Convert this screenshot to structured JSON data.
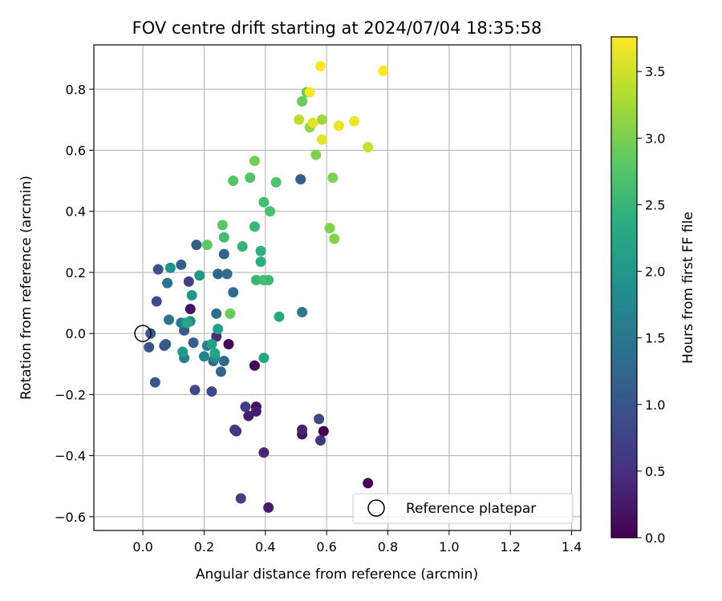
{
  "chart_data": {
    "type": "scatter",
    "title": "FOV centre drift starting at 2024/07/04 18:35:58",
    "xlabel": "Angular distance from reference (arcmin)",
    "ylabel": "Rotation from reference (arcmin)",
    "xlim": [
      -0.16,
      1.43
    ],
    "ylim": [
      -0.645,
      0.945
    ],
    "xticks": [
      0.0,
      0.2,
      0.4,
      0.6,
      0.8,
      1.0,
      1.2,
      1.4
    ],
    "xtick_labels": [
      "0.0",
      "0.2",
      "0.4",
      "0.6",
      "0.8",
      "1.0",
      "1.2",
      "1.4"
    ],
    "yticks": [
      -0.6,
      -0.4,
      -0.2,
      0.0,
      0.2,
      0.4,
      0.6,
      0.8
    ],
    "ytick_labels": [
      "−0.6",
      "−0.4",
      "−0.2",
      "0.0",
      "0.2",
      "0.4",
      "0.6",
      "0.8"
    ],
    "grid": true,
    "colormap": "viridis",
    "colorbar": {
      "label": "Hours from first FF file",
      "range": [
        0.0,
        3.76
      ],
      "ticks": [
        0.0,
        0.5,
        1.0,
        1.5,
        2.0,
        2.5,
        3.0,
        3.5
      ],
      "tick_labels": [
        "0.0",
        "0.5",
        "1.0",
        "1.5",
        "2.0",
        "2.5",
        "3.0",
        "3.5"
      ]
    },
    "legend": {
      "label": "Reference platepar",
      "placement": "lower-right"
    },
    "reference_point": {
      "x": 0.0,
      "y": 0.0
    },
    "points": [
      {
        "x": 0.59,
        "y": -0.32,
        "h": 0.0
      },
      {
        "x": 0.735,
        "y": -0.49,
        "h": 0.02
      },
      {
        "x": 0.365,
        "y": -0.105,
        "h": 0.05
      },
      {
        "x": 0.28,
        "y": -0.035,
        "h": 0.07
      },
      {
        "x": 0.37,
        "y": -0.24,
        "h": 0.1
      },
      {
        "x": 0.52,
        "y": -0.33,
        "h": 0.15
      },
      {
        "x": 0.155,
        "y": 0.08,
        "h": 0.2
      },
      {
        "x": 0.41,
        "y": -0.57,
        "h": 0.25
      },
      {
        "x": 0.345,
        "y": -0.27,
        "h": 0.28
      },
      {
        "x": 0.37,
        "y": -0.255,
        "h": 0.3
      },
      {
        "x": 0.52,
        "y": -0.315,
        "h": 0.35
      },
      {
        "x": 0.395,
        "y": -0.39,
        "h": 0.4
      },
      {
        "x": 0.305,
        "y": -0.32,
        "h": 0.45
      },
      {
        "x": 0.24,
        "y": -0.01,
        "h": 0.5
      },
      {
        "x": 0.58,
        "y": -0.35,
        "h": 0.55
      },
      {
        "x": 0.3,
        "y": -0.315,
        "h": 0.6
      },
      {
        "x": 0.335,
        "y": -0.24,
        "h": 0.65
      },
      {
        "x": 0.32,
        "y": -0.54,
        "h": 0.7
      },
      {
        "x": 0.15,
        "y": 0.17,
        "h": 0.72
      },
      {
        "x": 0.575,
        "y": -0.28,
        "h": 0.8
      },
      {
        "x": 0.225,
        "y": -0.19,
        "h": 0.82
      },
      {
        "x": 0.17,
        "y": -0.185,
        "h": 0.85
      },
      {
        "x": 0.045,
        "y": 0.105,
        "h": 0.9
      },
      {
        "x": 0.07,
        "y": -0.04,
        "h": 0.92
      },
      {
        "x": 0.05,
        "y": 0.21,
        "h": 0.95
      },
      {
        "x": 0.02,
        "y": -0.045,
        "h": 0.98
      },
      {
        "x": 0.04,
        "y": -0.16,
        "h": 1.0
      },
      {
        "x": 0.025,
        "y": 0.0,
        "h": 1.02
      },
      {
        "x": 0.075,
        "y": -0.035,
        "h": 1.05
      },
      {
        "x": 0.165,
        "y": -0.03,
        "h": 1.08
      },
      {
        "x": 0.175,
        "y": 0.29,
        "h": 1.1
      },
      {
        "x": 0.135,
        "y": 0.01,
        "h": 1.12
      },
      {
        "x": 0.515,
        "y": 0.505,
        "h": 1.15
      },
      {
        "x": 0.125,
        "y": 0.225,
        "h": 1.18
      },
      {
        "x": 0.255,
        "y": -0.125,
        "h": 1.2
      },
      {
        "x": 0.23,
        "y": -0.09,
        "h": 1.22
      },
      {
        "x": 0.265,
        "y": 0.26,
        "h": 1.25
      },
      {
        "x": 0.245,
        "y": 0.195,
        "h": 1.28
      },
      {
        "x": 0.275,
        "y": 0.195,
        "h": 1.3
      },
      {
        "x": 0.265,
        "y": -0.09,
        "h": 1.32
      },
      {
        "x": 0.295,
        "y": 0.135,
        "h": 1.35
      },
      {
        "x": 0.08,
        "y": 0.165,
        "h": 1.38
      },
      {
        "x": 0.24,
        "y": 0.065,
        "h": 1.4
      },
      {
        "x": 0.085,
        "y": 0.045,
        "h": 1.45
      },
      {
        "x": 0.125,
        "y": 0.035,
        "h": 1.48
      },
      {
        "x": 0.52,
        "y": 0.07,
        "h": 1.55
      },
      {
        "x": 0.135,
        "y": -0.08,
        "h": 1.6
      },
      {
        "x": 0.21,
        "y": -0.04,
        "h": 1.65
      },
      {
        "x": 0.2,
        "y": -0.075,
        "h": 1.7
      },
      {
        "x": 0.155,
        "y": 0.04,
        "h": 1.75
      },
      {
        "x": 0.235,
        "y": -0.08,
        "h": 1.8
      },
      {
        "x": 0.14,
        "y": 0.035,
        "h": 1.85
      },
      {
        "x": 0.09,
        "y": 0.215,
        "h": 1.9
      },
      {
        "x": 0.16,
        "y": 0.125,
        "h": 1.95
      },
      {
        "x": 0.185,
        "y": 0.19,
        "h": 2.0
      },
      {
        "x": 0.13,
        "y": -0.06,
        "h": 2.05
      },
      {
        "x": 0.225,
        "y": -0.035,
        "h": 2.1
      },
      {
        "x": 0.245,
        "y": 0.015,
        "h": 2.15
      },
      {
        "x": 0.235,
        "y": -0.065,
        "h": 2.2
      },
      {
        "x": 0.145,
        "y": 0.035,
        "h": 2.22
      },
      {
        "x": 0.395,
        "y": -0.08,
        "h": 2.25
      },
      {
        "x": 0.445,
        "y": 0.055,
        "h": 2.3
      },
      {
        "x": 0.385,
        "y": 0.235,
        "h": 2.35
      },
      {
        "x": 0.385,
        "y": 0.27,
        "h": 2.4
      },
      {
        "x": 0.325,
        "y": 0.285,
        "h": 2.45
      },
      {
        "x": 0.365,
        "y": 0.35,
        "h": 2.5
      },
      {
        "x": 0.37,
        "y": 0.175,
        "h": 2.52
      },
      {
        "x": 0.41,
        "y": 0.175,
        "h": 2.55
      },
      {
        "x": 0.395,
        "y": 0.175,
        "h": 2.58
      },
      {
        "x": 0.265,
        "y": 0.315,
        "h": 2.6
      },
      {
        "x": 0.395,
        "y": 0.43,
        "h": 2.62
      },
      {
        "x": 0.415,
        "y": 0.4,
        "h": 2.65
      },
      {
        "x": 0.435,
        "y": 0.495,
        "h": 2.7
      },
      {
        "x": 0.35,
        "y": 0.51,
        "h": 2.72
      },
      {
        "x": 0.295,
        "y": 0.5,
        "h": 2.75
      },
      {
        "x": 0.26,
        "y": 0.355,
        "h": 2.8
      },
      {
        "x": 0.21,
        "y": 0.29,
        "h": 2.82
      },
      {
        "x": 0.535,
        "y": 0.79,
        "h": 2.85
      },
      {
        "x": 0.52,
        "y": 0.76,
        "h": 2.88
      },
      {
        "x": 0.285,
        "y": 0.065,
        "h": 2.9
      },
      {
        "x": 0.365,
        "y": 0.565,
        "h": 2.95
      },
      {
        "x": 0.565,
        "y": 0.585,
        "h": 3.0
      },
      {
        "x": 0.62,
        "y": 0.51,
        "h": 3.02
      },
      {
        "x": 0.61,
        "y": 0.345,
        "h": 3.05
      },
      {
        "x": 0.625,
        "y": 0.31,
        "h": 3.08
      },
      {
        "x": 0.545,
        "y": 0.675,
        "h": 3.15
      },
      {
        "x": 0.585,
        "y": 0.7,
        "h": 3.2
      },
      {
        "x": 0.51,
        "y": 0.7,
        "h": 3.4
      },
      {
        "x": 0.735,
        "y": 0.61,
        "h": 3.45
      },
      {
        "x": 0.555,
        "y": 0.69,
        "h": 3.6
      },
      {
        "x": 0.585,
        "y": 0.635,
        "h": 3.62
      },
      {
        "x": 0.64,
        "y": 0.68,
        "h": 3.65
      },
      {
        "x": 0.69,
        "y": 0.695,
        "h": 3.68
      },
      {
        "x": 0.545,
        "y": 0.79,
        "h": 3.7
      },
      {
        "x": 0.58,
        "y": 0.875,
        "h": 3.72
      },
      {
        "x": 0.785,
        "y": 0.86,
        "h": 3.74
      }
    ]
  }
}
